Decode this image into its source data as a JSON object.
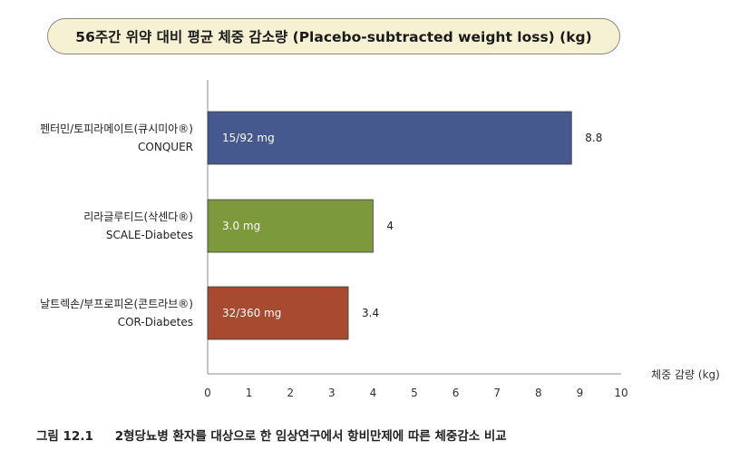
{
  "chart_data": {
    "type": "bar",
    "orientation": "horizontal",
    "title": "56주간 위약 대비 평균 체중 감소량 (Placebo-subtracted weight loss) (kg)",
    "xlabel": "체중 감량 (kg)",
    "xlim": [
      0,
      10
    ],
    "xticks": [
      "0",
      "1",
      "2",
      "3",
      "4",
      "5",
      "6",
      "7",
      "8",
      "9",
      "10"
    ],
    "categories": [
      {
        "name": "펜터민/토피라메이트(큐시미아®)",
        "trial": "CONQUER",
        "dose": "15/92 mg",
        "value": 8.8,
        "value_label": "8.8",
        "color": "#46598f"
      },
      {
        "name": "리라글루티드(삭센다®)",
        "trial": "SCALE-Diabetes",
        "dose": "3.0 mg",
        "value": 4.0,
        "value_label": "4",
        "color": "#7c9a3c"
      },
      {
        "name": "날트렉손/부프로피온(콘트라브®)",
        "trial": "COR-Diabetes",
        "dose": "32/360 mg",
        "value": 3.4,
        "value_label": "3.4",
        "color": "#a84a30"
      }
    ],
    "grid": false,
    "legend": "none"
  },
  "caption": {
    "figure_number": "그림 12.1",
    "text": "2형당뇨병 환자를 대상으로 한 임상연구에서 항비만제에 따른 체중감소 비교"
  }
}
